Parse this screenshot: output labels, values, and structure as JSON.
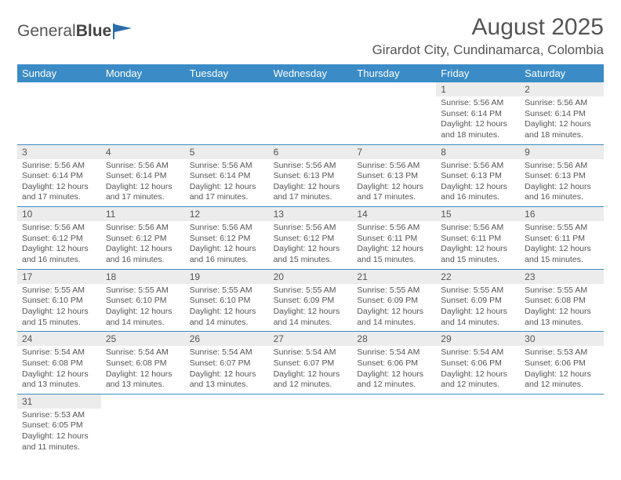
{
  "logo": {
    "text1": "General",
    "text2": "Blue"
  },
  "title": "August 2025",
  "location": "Girardot City, Cundinamarca, Colombia",
  "colors": {
    "header_bg": "#3b8bc6",
    "header_text": "#ffffff",
    "daynum_bg": "#ececec",
    "border": "#3b8bc6",
    "text": "#555555",
    "logo_flag": "#2a6da8"
  },
  "weekdays": [
    "Sunday",
    "Monday",
    "Tuesday",
    "Wednesday",
    "Thursday",
    "Friday",
    "Saturday"
  ],
  "weeks": [
    [
      {
        "empty": true
      },
      {
        "empty": true
      },
      {
        "empty": true
      },
      {
        "empty": true
      },
      {
        "empty": true
      },
      {
        "num": "1",
        "sunrise": "Sunrise: 5:56 AM",
        "sunset": "Sunset: 6:14 PM",
        "daylight": "Daylight: 12 hours and 18 minutes."
      },
      {
        "num": "2",
        "sunrise": "Sunrise: 5:56 AM",
        "sunset": "Sunset: 6:14 PM",
        "daylight": "Daylight: 12 hours and 18 minutes."
      }
    ],
    [
      {
        "num": "3",
        "sunrise": "Sunrise: 5:56 AM",
        "sunset": "Sunset: 6:14 PM",
        "daylight": "Daylight: 12 hours and 17 minutes."
      },
      {
        "num": "4",
        "sunrise": "Sunrise: 5:56 AM",
        "sunset": "Sunset: 6:14 PM",
        "daylight": "Daylight: 12 hours and 17 minutes."
      },
      {
        "num": "5",
        "sunrise": "Sunrise: 5:56 AM",
        "sunset": "Sunset: 6:14 PM",
        "daylight": "Daylight: 12 hours and 17 minutes."
      },
      {
        "num": "6",
        "sunrise": "Sunrise: 5:56 AM",
        "sunset": "Sunset: 6:13 PM",
        "daylight": "Daylight: 12 hours and 17 minutes."
      },
      {
        "num": "7",
        "sunrise": "Sunrise: 5:56 AM",
        "sunset": "Sunset: 6:13 PM",
        "daylight": "Daylight: 12 hours and 17 minutes."
      },
      {
        "num": "8",
        "sunrise": "Sunrise: 5:56 AM",
        "sunset": "Sunset: 6:13 PM",
        "daylight": "Daylight: 12 hours and 16 minutes."
      },
      {
        "num": "9",
        "sunrise": "Sunrise: 5:56 AM",
        "sunset": "Sunset: 6:13 PM",
        "daylight": "Daylight: 12 hours and 16 minutes."
      }
    ],
    [
      {
        "num": "10",
        "sunrise": "Sunrise: 5:56 AM",
        "sunset": "Sunset: 6:12 PM",
        "daylight": "Daylight: 12 hours and 16 minutes."
      },
      {
        "num": "11",
        "sunrise": "Sunrise: 5:56 AM",
        "sunset": "Sunset: 6:12 PM",
        "daylight": "Daylight: 12 hours and 16 minutes."
      },
      {
        "num": "12",
        "sunrise": "Sunrise: 5:56 AM",
        "sunset": "Sunset: 6:12 PM",
        "daylight": "Daylight: 12 hours and 16 minutes."
      },
      {
        "num": "13",
        "sunrise": "Sunrise: 5:56 AM",
        "sunset": "Sunset: 6:12 PM",
        "daylight": "Daylight: 12 hours and 15 minutes."
      },
      {
        "num": "14",
        "sunrise": "Sunrise: 5:56 AM",
        "sunset": "Sunset: 6:11 PM",
        "daylight": "Daylight: 12 hours and 15 minutes."
      },
      {
        "num": "15",
        "sunrise": "Sunrise: 5:56 AM",
        "sunset": "Sunset: 6:11 PM",
        "daylight": "Daylight: 12 hours and 15 minutes."
      },
      {
        "num": "16",
        "sunrise": "Sunrise: 5:55 AM",
        "sunset": "Sunset: 6:11 PM",
        "daylight": "Daylight: 12 hours and 15 minutes."
      }
    ],
    [
      {
        "num": "17",
        "sunrise": "Sunrise: 5:55 AM",
        "sunset": "Sunset: 6:10 PM",
        "daylight": "Daylight: 12 hours and 15 minutes."
      },
      {
        "num": "18",
        "sunrise": "Sunrise: 5:55 AM",
        "sunset": "Sunset: 6:10 PM",
        "daylight": "Daylight: 12 hours and 14 minutes."
      },
      {
        "num": "19",
        "sunrise": "Sunrise: 5:55 AM",
        "sunset": "Sunset: 6:10 PM",
        "daylight": "Daylight: 12 hours and 14 minutes."
      },
      {
        "num": "20",
        "sunrise": "Sunrise: 5:55 AM",
        "sunset": "Sunset: 6:09 PM",
        "daylight": "Daylight: 12 hours and 14 minutes."
      },
      {
        "num": "21",
        "sunrise": "Sunrise: 5:55 AM",
        "sunset": "Sunset: 6:09 PM",
        "daylight": "Daylight: 12 hours and 14 minutes."
      },
      {
        "num": "22",
        "sunrise": "Sunrise: 5:55 AM",
        "sunset": "Sunset: 6:09 PM",
        "daylight": "Daylight: 12 hours and 14 minutes."
      },
      {
        "num": "23",
        "sunrise": "Sunrise: 5:55 AM",
        "sunset": "Sunset: 6:08 PM",
        "daylight": "Daylight: 12 hours and 13 minutes."
      }
    ],
    [
      {
        "num": "24",
        "sunrise": "Sunrise: 5:54 AM",
        "sunset": "Sunset: 6:08 PM",
        "daylight": "Daylight: 12 hours and 13 minutes."
      },
      {
        "num": "25",
        "sunrise": "Sunrise: 5:54 AM",
        "sunset": "Sunset: 6:08 PM",
        "daylight": "Daylight: 12 hours and 13 minutes."
      },
      {
        "num": "26",
        "sunrise": "Sunrise: 5:54 AM",
        "sunset": "Sunset: 6:07 PM",
        "daylight": "Daylight: 12 hours and 13 minutes."
      },
      {
        "num": "27",
        "sunrise": "Sunrise: 5:54 AM",
        "sunset": "Sunset: 6:07 PM",
        "daylight": "Daylight: 12 hours and 12 minutes."
      },
      {
        "num": "28",
        "sunrise": "Sunrise: 5:54 AM",
        "sunset": "Sunset: 6:06 PM",
        "daylight": "Daylight: 12 hours and 12 minutes."
      },
      {
        "num": "29",
        "sunrise": "Sunrise: 5:54 AM",
        "sunset": "Sunset: 6:06 PM",
        "daylight": "Daylight: 12 hours and 12 minutes."
      },
      {
        "num": "30",
        "sunrise": "Sunrise: 5:53 AM",
        "sunset": "Sunset: 6:06 PM",
        "daylight": "Daylight: 12 hours and 12 minutes."
      }
    ],
    [
      {
        "num": "31",
        "sunrise": "Sunrise: 5:53 AM",
        "sunset": "Sunset: 6:05 PM",
        "daylight": "Daylight: 12 hours and 11 minutes."
      },
      {
        "empty": true
      },
      {
        "empty": true
      },
      {
        "empty": true
      },
      {
        "empty": true
      },
      {
        "empty": true
      },
      {
        "empty": true
      }
    ]
  ]
}
